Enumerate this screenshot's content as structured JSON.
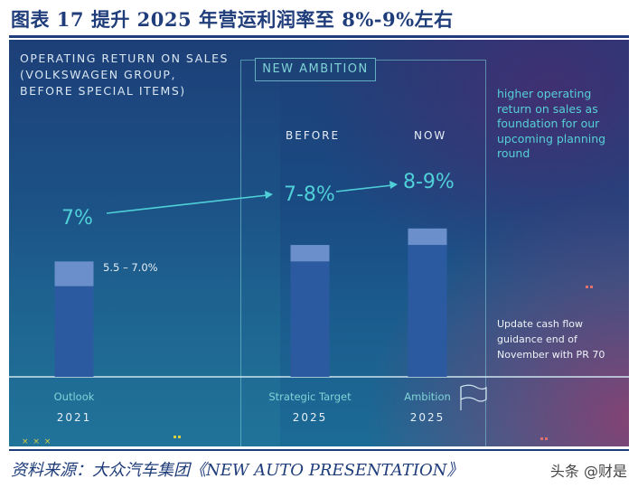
{
  "figure": {
    "title": "图表 17   提升 2025 年营运利润率至 8%-9%左右",
    "source": "资料来源：大众汽车集团《NEW AUTO PRESENTATION》",
    "watermark": "头条 @财是"
  },
  "slide": {
    "header_lines": [
      "OPERATING RETURN ON SALES",
      "(VOLKSWAGEN GROUP,",
      "BEFORE SPECIAL ITEMS)"
    ],
    "ambition_label": "NEW AMBITION",
    "col_before": "BEFORE",
    "col_now": "NOW",
    "right_note": "higher operating return on sales as foundation for our upcoming planning round",
    "update_note": "Update cash flow guidance end of November with PR 70",
    "deco_bottom_left": "×  ×  ×"
  },
  "chart_data": {
    "type": "bar",
    "title": "OPERATING RETURN ON SALES (VOLKSWAGEN GROUP, BEFORE SPECIAL ITEMS)",
    "categories": [
      "Outlook",
      "Strategic Target",
      "Ambition"
    ],
    "years": [
      "2021",
      "2025",
      "2025"
    ],
    "range_low": [
      5.5,
      7.0,
      8.0
    ],
    "range_high": [
      7.0,
      8.0,
      9.0
    ],
    "headline_labels": [
      "7%",
      "7-8%",
      "8-9%"
    ],
    "range_annotation": "5.5 – 7.0%",
    "colors": {
      "bar": "#2c5aa0",
      "bar_range": "#6a8fcb",
      "accent": "#4fd0d8"
    },
    "ylim": [
      0,
      10
    ],
    "grid": false
  }
}
